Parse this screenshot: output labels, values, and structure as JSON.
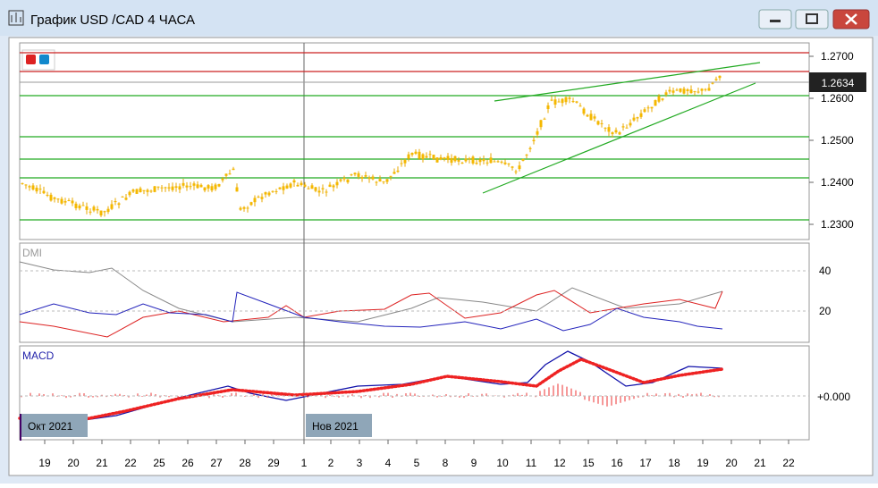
{
  "window": {
    "title": "График USD /CAD  4 ЧАСА"
  },
  "price_axis": {
    "ticks": [
      "1.2700",
      "1.2600",
      "1.2500",
      "1.2400",
      "1.2300"
    ],
    "current": "1.2634"
  },
  "dmi_panel": {
    "label": "DMI",
    "ticks": [
      "40",
      "20"
    ]
  },
  "macd_panel": {
    "label": "MACD",
    "ticks": [
      "+0.000"
    ]
  },
  "month_labels": [
    "Окт 2021",
    "Нов 2021"
  ],
  "date_axis": [
    "19",
    "20",
    "21",
    "22",
    "25",
    "26",
    "27",
    "28",
    "29",
    "1",
    "2",
    "3",
    "4",
    "5",
    "8",
    "9",
    "10",
    "11",
    "12",
    "15",
    "16",
    "17",
    "18",
    "19",
    "20",
    "21",
    "22"
  ]
}
